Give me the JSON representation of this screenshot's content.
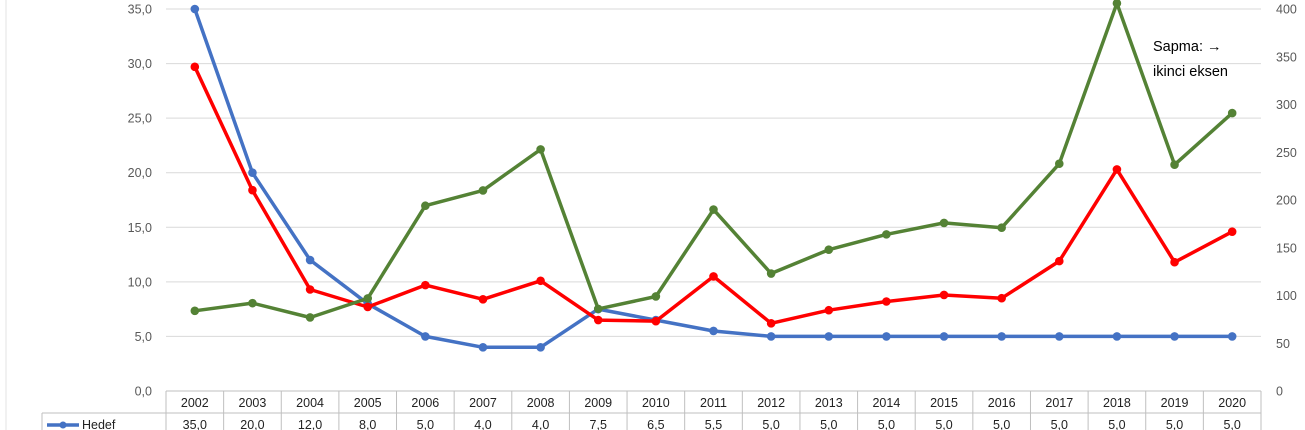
{
  "chart_data": {
    "type": "line",
    "categories": [
      "2002",
      "2003",
      "2004",
      "2005",
      "2006",
      "2007",
      "2008",
      "2009",
      "2010",
      "2011",
      "2012",
      "2013",
      "2014",
      "2015",
      "2016",
      "2017",
      "2018",
      "2019",
      "2020"
    ],
    "y_left": {
      "ylim": [
        0,
        35
      ],
      "ticks": [
        "0,0",
        "5,0",
        "10,0",
        "15,0",
        "20,0",
        "25,0",
        "30,0",
        "35,0"
      ]
    },
    "y_right": {
      "ylim": [
        0,
        400
      ],
      "ticks": [
        "0",
        "50",
        "100",
        "150",
        "200",
        "250",
        "300",
        "350",
        "400"
      ]
    },
    "grid": true,
    "series": [
      {
        "name": "Hedef",
        "axis": "left",
        "color": "#4472C4",
        "values": [
          35.0,
          20.0,
          12.0,
          8.0,
          5.0,
          4.0,
          4.0,
          7.5,
          6.5,
          5.5,
          5.0,
          5.0,
          5.0,
          5.0,
          5.0,
          5.0,
          5.0,
          5.0,
          5.0
        ],
        "labels": [
          "35,0",
          "20,0",
          "12,0",
          "8,0",
          "5,0",
          "4,0",
          "4,0",
          "7,5",
          "6,5",
          "5,5",
          "5,0",
          "5,0",
          "5,0",
          "5,0",
          "5,0",
          "5,0",
          "5,0",
          "5,0",
          "5,0"
        ]
      },
      {
        "axis": "left",
        "color": "#FF0000",
        "values": [
          29.7,
          18.4,
          9.3,
          7.7,
          9.7,
          8.4,
          10.1,
          6.5,
          6.4,
          10.5,
          6.2,
          7.4,
          8.2,
          8.8,
          8.5,
          11.9,
          20.3,
          11.8,
          14.6
        ]
      },
      {
        "axis": "right",
        "color": "#548235",
        "values": [
          84,
          92,
          77,
          97,
          194,
          210,
          253,
          86,
          99,
          190,
          123,
          148,
          164,
          176,
          171,
          238,
          406,
          237,
          291
        ]
      }
    ],
    "annotation": [
      "Sapma: →",
      "ikinci eksen"
    ]
  }
}
